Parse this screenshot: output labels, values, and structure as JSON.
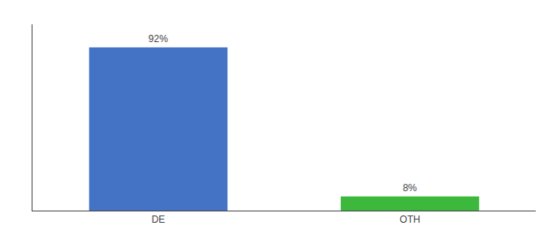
{
  "chart_data": {
    "type": "bar",
    "categories": [
      "DE",
      "OTH"
    ],
    "values": [
      92,
      8
    ],
    "value_labels": [
      "92%",
      "8%"
    ],
    "colors": [
      "#4472c4",
      "#3cb93c"
    ],
    "ylim": [
      0,
      105
    ],
    "yticks": [],
    "data_labels": true,
    "tick_labels": "x",
    "grid": false
  }
}
